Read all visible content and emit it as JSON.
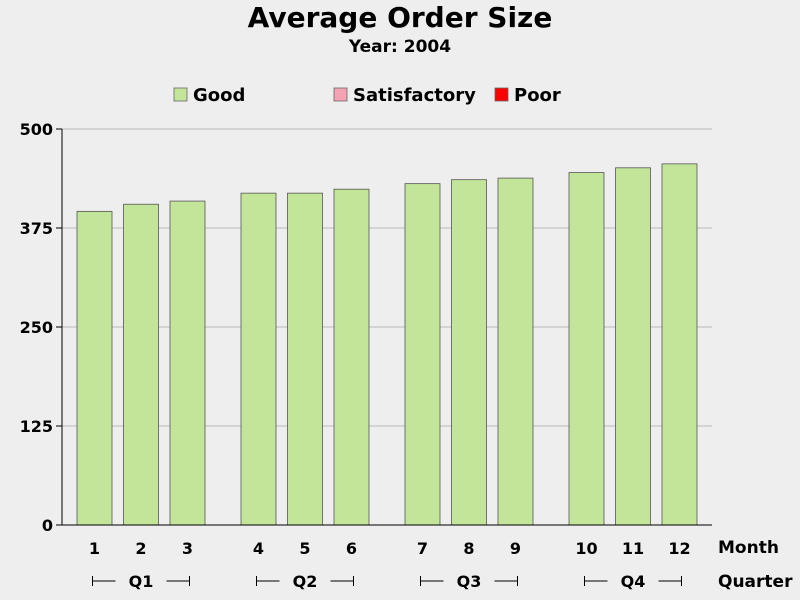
{
  "chart_data": {
    "type": "bar",
    "title": "Average Order Size",
    "subtitle": "Year: 2004",
    "legend": {
      "placement": "top",
      "entries": [
        {
          "label": "Good",
          "color": "#c3e59a"
        },
        {
          "label": "Satisfactory",
          "color": "#f4a3b4"
        },
        {
          "label": "Poor",
          "color": "#ff0000"
        }
      ]
    },
    "xlabel": "Month",
    "group_label": "Quarter",
    "categories": [
      "1",
      "2",
      "3",
      "4",
      "5",
      "6",
      "7",
      "8",
      "9",
      "10",
      "11",
      "12"
    ],
    "groups": [
      {
        "label": "Q1",
        "categories": [
          "1",
          "2",
          "3"
        ]
      },
      {
        "label": "Q2",
        "categories": [
          "4",
          "5",
          "6"
        ]
      },
      {
        "label": "Q3",
        "categories": [
          "7",
          "8",
          "9"
        ]
      },
      {
        "label": "Q4",
        "categories": [
          "10",
          "11",
          "12"
        ]
      }
    ],
    "values": [
      396,
      405,
      409,
      419,
      419,
      424,
      431,
      436,
      438,
      445,
      451,
      456
    ],
    "bar_color": "#c3e59a",
    "ylim": [
      0,
      500
    ],
    "yticks": [
      0,
      125,
      250,
      375,
      500
    ],
    "grid": true
  }
}
